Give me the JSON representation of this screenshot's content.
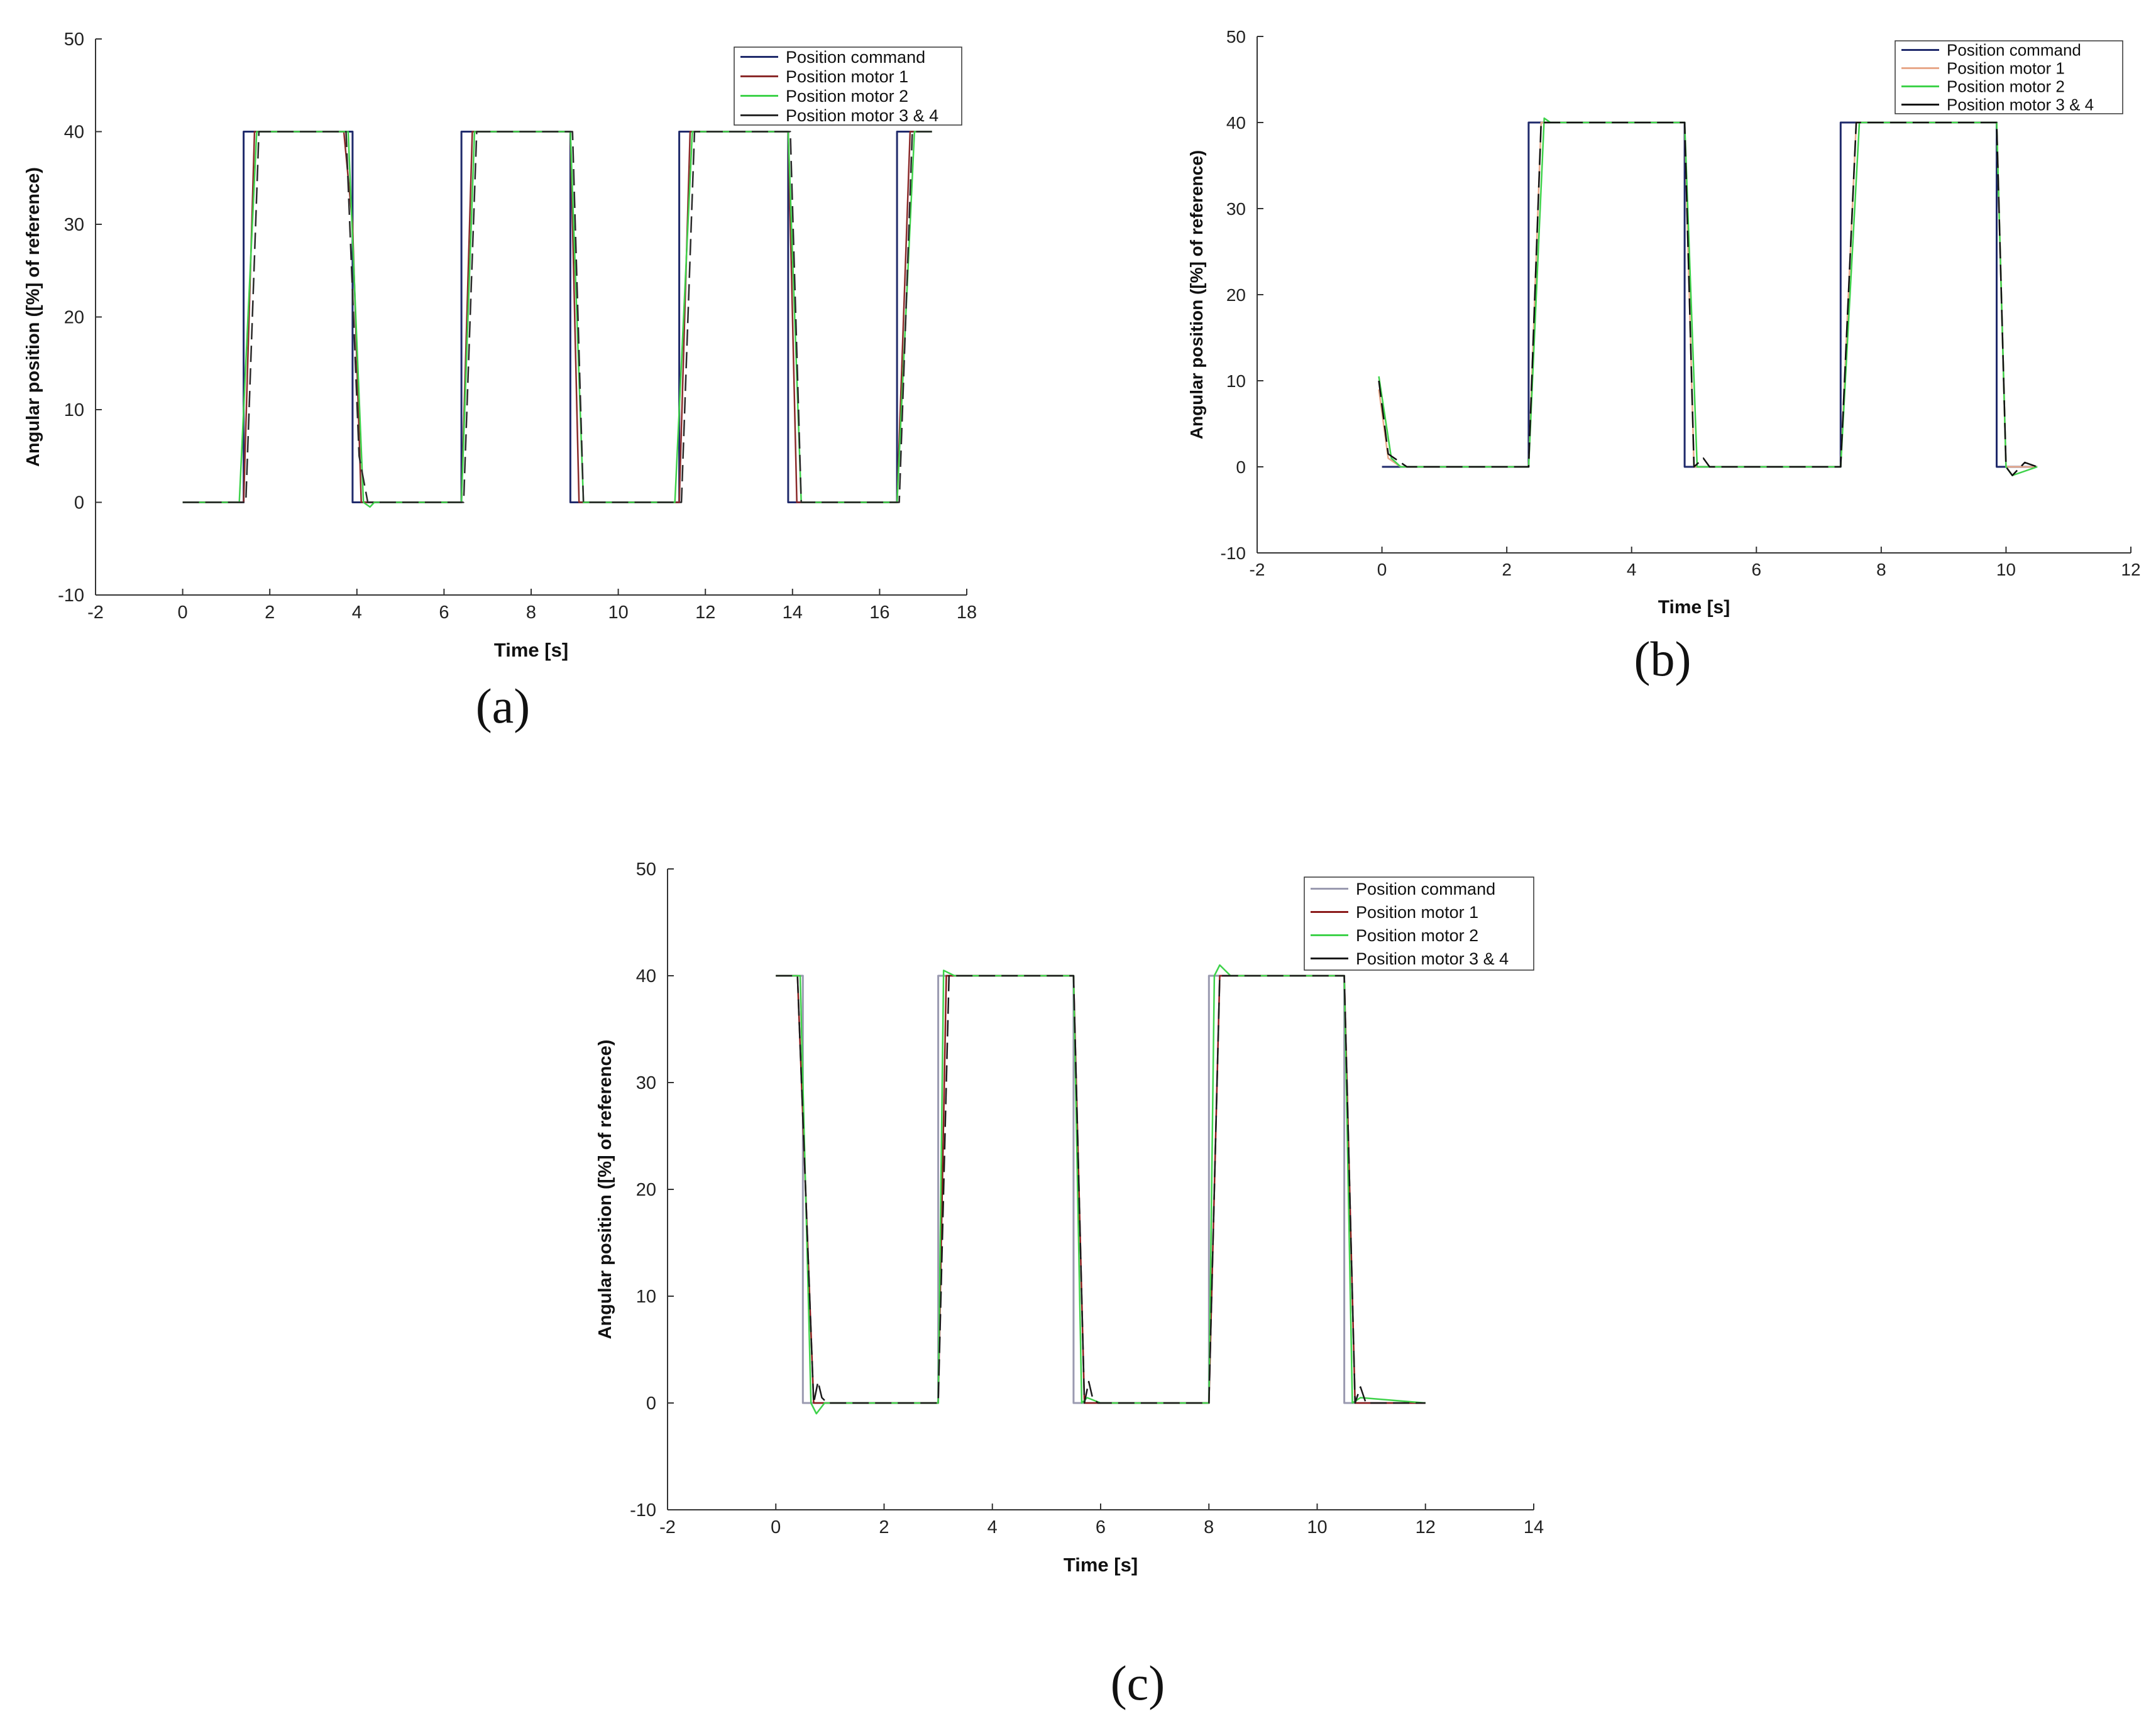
{
  "figure": {
    "panel_labels": [
      "(a)",
      "(b)",
      "(c)"
    ]
  },
  "chart_data": [
    {
      "type": "line",
      "panel": "a",
      "title": "",
      "xlabel": "Time [s]",
      "ylabel": "Angular position ([%] of reference)",
      "xlim": [
        -2,
        18
      ],
      "ylim": [
        -10,
        50
      ],
      "x_ticks": [
        -2,
        0,
        2,
        4,
        6,
        8,
        10,
        12,
        14,
        16,
        18
      ],
      "y_ticks": [
        -10,
        0,
        10,
        20,
        30,
        40,
        50
      ],
      "grid": false,
      "legend": "top-right",
      "series": [
        {
          "name": "Position command",
          "color": "#1f2a6b",
          "x": [
            0,
            1.4,
            1.4,
            3.9,
            3.9,
            6.4,
            6.4,
            8.9,
            8.9,
            11.4,
            11.4,
            13.9,
            13.9,
            16.4,
            16.4,
            17.2
          ],
          "y": [
            0,
            0,
            40,
            40,
            0,
            0,
            40,
            40,
            0,
            0,
            40,
            40,
            0,
            0,
            40,
            40
          ]
        },
        {
          "name": "Position motor 1",
          "color": "#8b2a2a",
          "x": [
            0,
            1.4,
            1.65,
            3.7,
            3.9,
            4.1,
            6.4,
            6.65,
            8.9,
            9.1,
            11.4,
            11.65,
            13.9,
            14.1,
            16.4,
            16.7,
            17.2
          ],
          "y": [
            0,
            0,
            40,
            40,
            30,
            0,
            0,
            40,
            40,
            0,
            0,
            40,
            40,
            0,
            0,
            40,
            40
          ]
        },
        {
          "name": "Position motor 2",
          "color": "#3ed24a",
          "x": [
            0,
            1.3,
            1.7,
            3.8,
            4.15,
            4.3,
            4.4,
            6.4,
            6.7,
            8.9,
            9.2,
            11.3,
            11.7,
            13.9,
            14.2,
            16.4,
            16.8,
            17.2
          ],
          "y": [
            0,
            0,
            40,
            40,
            0,
            -0.5,
            0,
            0,
            40,
            40,
            0,
            0,
            40,
            40,
            0,
            0,
            40,
            40
          ]
        },
        {
          "name": "Position motor 3 & 4",
          "color": "#2a2a2a",
          "x": [
            0,
            1.45,
            1.75,
            3.75,
            4.05,
            4.25,
            6.45,
            6.75,
            8.95,
            9.2,
            11.45,
            11.75,
            13.95,
            14.2,
            16.45,
            16.75,
            17.2
          ],
          "y": [
            0,
            0,
            40,
            40,
            5,
            0,
            0,
            40,
            40,
            0,
            0,
            40,
            40,
            0,
            0,
            40,
            40
          ]
        }
      ]
    },
    {
      "type": "line",
      "panel": "b",
      "title": "",
      "xlabel": "Time [s]",
      "ylabel": "Angular position ([%] of reference)",
      "xlim": [
        -2,
        12
      ],
      "ylim": [
        -10,
        50
      ],
      "x_ticks": [
        -2,
        0,
        2,
        4,
        6,
        8,
        10,
        12
      ],
      "y_ticks": [
        -10,
        0,
        10,
        20,
        30,
        40,
        50
      ],
      "grid": false,
      "legend": "top-right",
      "series": [
        {
          "name": "Position command",
          "color": "#1f2a6b",
          "x": [
            0,
            2.35,
            2.35,
            4.85,
            4.85,
            7.35,
            7.35,
            9.85,
            9.85,
            10.5
          ],
          "y": [
            0,
            0,
            40,
            40,
            0,
            0,
            40,
            40,
            0,
            0
          ]
        },
        {
          "name": "Position motor 1",
          "color": "#e8a88a",
          "x": [
            -0.05,
            0.1,
            0.3,
            2.35,
            2.55,
            4.85,
            5.0,
            7.35,
            7.6,
            9.85,
            10.0,
            10.5
          ],
          "y": [
            9,
            1,
            0,
            0,
            40,
            40,
            0,
            0,
            40,
            40,
            0,
            0
          ]
        },
        {
          "name": "Position motor 2",
          "color": "#3ed24a",
          "x": [
            -0.05,
            0.15,
            0.3,
            2.35,
            2.6,
            2.7,
            4.85,
            5.05,
            7.35,
            7.65,
            9.85,
            10.0,
            10.1,
            10.5
          ],
          "y": [
            10.5,
            1,
            0,
            0,
            40.5,
            40,
            40,
            0,
            0,
            40,
            40,
            0,
            -1,
            0
          ]
        },
        {
          "name": "Position motor 3 & 4",
          "color": "#111111",
          "x": [
            -0.05,
            0.1,
            0.2,
            0.4,
            2.35,
            2.55,
            4.85,
            5.0,
            5.15,
            5.25,
            7.35,
            7.6,
            9.85,
            10.0,
            10.1,
            10.3,
            10.5
          ],
          "y": [
            10,
            1.5,
            1,
            0,
            0,
            40,
            40,
            0,
            1,
            0,
            0,
            40,
            40,
            0,
            -1,
            0.5,
            0
          ]
        }
      ]
    },
    {
      "type": "line",
      "panel": "c",
      "title": "",
      "xlabel": "Time [s]",
      "ylabel": "Angular position ([%] of reference)",
      "xlim": [
        -2,
        14
      ],
      "ylim": [
        -10,
        50
      ],
      "x_ticks": [
        -2,
        0,
        2,
        4,
        6,
        8,
        10,
        12,
        14
      ],
      "y_ticks": [
        -10,
        0,
        10,
        20,
        30,
        40,
        50
      ],
      "grid": false,
      "legend": "top-right",
      "series": [
        {
          "name": "Position command",
          "color": "#9a9ab0",
          "x": [
            0,
            0.5,
            0.5,
            3.0,
            3.0,
            5.5,
            5.5,
            8.0,
            8.0,
            10.5,
            10.5,
            12.0
          ],
          "y": [
            40,
            40,
            0,
            0,
            40,
            40,
            0,
            0,
            40,
            40,
            0,
            0
          ]
        },
        {
          "name": "Position motor 1",
          "color": "#8b1a1a",
          "x": [
            0,
            0.4,
            0.7,
            3.0,
            3.15,
            5.5,
            5.7,
            8.0,
            8.2,
            10.5,
            10.7,
            12.0
          ],
          "y": [
            40,
            40,
            0,
            0,
            40,
            40,
            0,
            0,
            40,
            40,
            0,
            0
          ]
        },
        {
          "name": "Position motor 2",
          "color": "#3ed24a",
          "x": [
            0,
            0.45,
            0.65,
            0.75,
            0.9,
            3.0,
            3.1,
            3.3,
            5.5,
            5.65,
            5.75,
            6.0,
            8.0,
            8.1,
            8.2,
            8.4,
            10.5,
            10.65,
            10.8,
            12.0
          ],
          "y": [
            40,
            40,
            0,
            -1,
            0,
            0,
            40.5,
            40,
            40,
            0,
            0.5,
            0,
            0,
            40,
            41,
            40,
            40,
            0,
            0.5,
            0
          ]
        },
        {
          "name": "Position motor 3 & 4",
          "color": "#1a1a1a",
          "x": [
            0,
            0.4,
            0.7,
            0.78,
            0.85,
            0.95,
            3.0,
            3.2,
            5.5,
            5.7,
            5.78,
            5.85,
            5.95,
            8.0,
            8.2,
            10.5,
            10.7,
            10.8,
            10.9,
            12.0
          ],
          "y": [
            40,
            40,
            0,
            2,
            0.5,
            0,
            0,
            40,
            40,
            0,
            2,
            0.5,
            0,
            0,
            40,
            40,
            0,
            1.5,
            0,
            0
          ]
        }
      ]
    }
  ]
}
